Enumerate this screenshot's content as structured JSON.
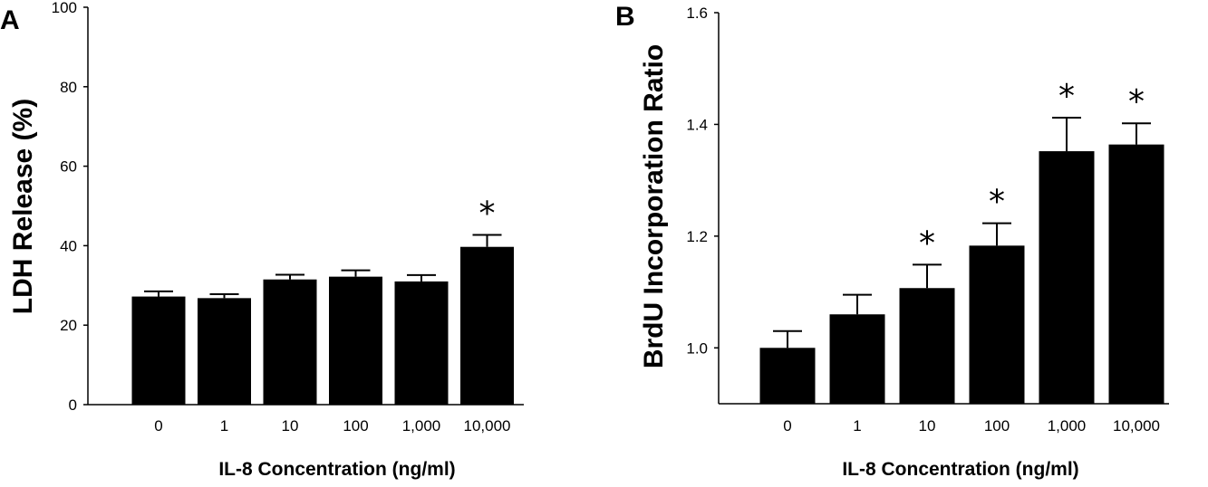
{
  "chart_data": [
    {
      "type": "bar",
      "panel_label": "A",
      "categories": [
        "0",
        "1",
        "10",
        "100",
        "1,000",
        "10,000"
      ],
      "values": [
        27.2,
        26.8,
        31.5,
        32.2,
        31.0,
        39.7
      ],
      "errors": [
        1.3,
        1.0,
        1.2,
        1.6,
        1.6,
        3.0
      ],
      "significant": [
        false,
        false,
        false,
        false,
        false,
        true
      ],
      "significance_marker": "*",
      "xlabel": "IL-8 Concentration (ng/ml)",
      "ylabel": "LDH Release (%)",
      "ylim": [
        0,
        100
      ],
      "yticks": [
        0,
        20,
        40,
        60,
        80,
        100
      ],
      "ytick_labels": [
        "0",
        "20",
        "40",
        "60",
        "80",
        "100"
      ],
      "bar_color": "#000000"
    },
    {
      "type": "bar",
      "panel_label": "B",
      "categories": [
        "0",
        "1",
        "10",
        "100",
        "1,000",
        "10,000"
      ],
      "values": [
        1.0,
        1.06,
        1.107,
        1.183,
        1.352,
        1.364
      ],
      "errors": [
        0.03,
        0.035,
        0.042,
        0.04,
        0.06,
        0.038
      ],
      "significant": [
        false,
        false,
        true,
        true,
        true,
        true
      ],
      "significance_marker": "*",
      "xlabel": "IL-8 Concentration (ng/ml)",
      "ylabel": "BrdU Incorporation Ratio",
      "ylim": [
        0.9,
        1.6
      ],
      "yticks": [
        1.0,
        1.2,
        1.4,
        1.6
      ],
      "ytick_labels": [
        "1.0",
        "1.2",
        "1.4",
        "1.6"
      ],
      "bar_color": "#000000"
    }
  ]
}
